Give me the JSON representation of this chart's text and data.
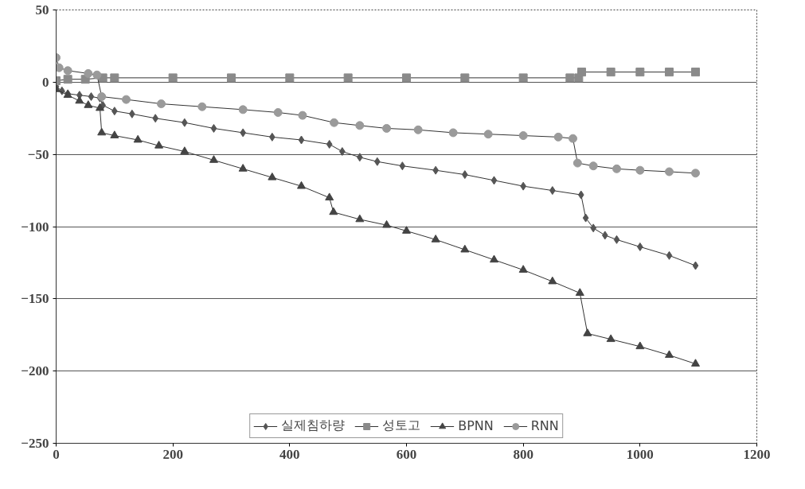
{
  "chart_data": {
    "type": "line",
    "xlim": [
      0,
      1200
    ],
    "xticks": [
      0,
      200,
      400,
      600,
      800,
      1000,
      1200
    ],
    "ylim": [
      -250,
      50
    ],
    "yticks": [
      -250,
      -200,
      -150,
      -100,
      -50,
      0,
      50
    ],
    "grid": "y",
    "legend": "bottom",
    "line_style": "solid",
    "series": [
      {
        "name": "실제침하량",
        "color": "#555555",
        "marker": "diamond",
        "x": [
          0,
          10,
          20,
          40,
          60,
          75,
          80,
          100,
          130,
          170,
          220,
          270,
          320,
          370,
          420,
          468,
          490,
          520,
          550,
          593,
          650,
          700,
          750,
          800,
          850,
          899,
          907,
          920,
          940,
          960,
          1000,
          1050,
          1095
        ],
        "values": [
          -3,
          -6,
          -8,
          -9,
          -10,
          -11,
          -16,
          -20,
          -22,
          -25,
          -28,
          -32,
          -35,
          -38,
          -40,
          -43,
          -48,
          -52,
          -55,
          -58,
          -61,
          -64,
          -68,
          -72,
          -75,
          -78,
          -94,
          -101,
          -106,
          -109,
          -114,
          -120,
          -127
        ]
      },
      {
        "name": "성토고",
        "color": "#8a8a8a",
        "marker": "square",
        "x": [
          0,
          20,
          50,
          80,
          100,
          200,
          300,
          400,
          500,
          600,
          700,
          800,
          880,
          895,
          900,
          950,
          1000,
          1050,
          1095
        ],
        "values": [
          1,
          2,
          2,
          3,
          3,
          3,
          3,
          3,
          3,
          3,
          3,
          3,
          3,
          3,
          7,
          7,
          7,
          7,
          7
        ]
      },
      {
        "name": "BPNN",
        "color": "#444444",
        "marker": "triangle",
        "x": [
          0,
          20,
          40,
          55,
          75,
          78,
          100,
          140,
          176,
          220,
          270,
          320,
          370,
          420,
          468,
          475,
          520,
          566,
          600,
          650,
          700,
          750,
          800,
          850,
          897,
          910,
          950,
          1000,
          1050,
          1095
        ],
        "values": [
          -5,
          -9,
          -13,
          -16,
          -18,
          -35,
          -37,
          -40,
          -44,
          -48,
          -54,
          -60,
          -66,
          -72,
          -80,
          -90,
          -95,
          -99,
          -103,
          -109,
          -116,
          -123,
          -130,
          -138,
          -146,
          -174,
          -178,
          -183,
          -189,
          -195
        ]
      },
      {
        "name": "RNN",
        "color": "#9a9a9a",
        "marker": "circle",
        "x": [
          0,
          5,
          20,
          55,
          70,
          78,
          120,
          180,
          250,
          320,
          380,
          422,
          476,
          520,
          566,
          620,
          680,
          740,
          800,
          860,
          885,
          893,
          920,
          960,
          1000,
          1050,
          1095
        ],
        "values": [
          17,
          10,
          8,
          6,
          5,
          -10,
          -12,
          -15,
          -17,
          -19,
          -21,
          -23,
          -28,
          -30,
          -32,
          -33,
          -35,
          -36,
          -37,
          -38,
          -39,
          -56,
          -58,
          -60,
          -61,
          -62,
          -63
        ]
      }
    ]
  }
}
